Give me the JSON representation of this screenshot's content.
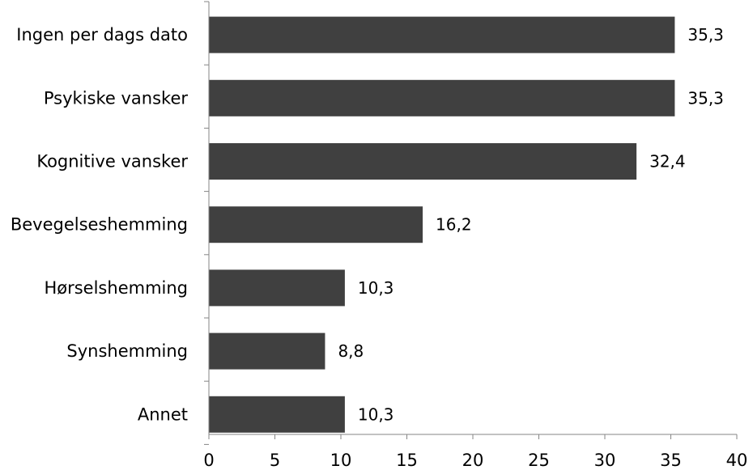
{
  "chart_data": {
    "type": "bar",
    "orientation": "horizontal",
    "categories": [
      "Ingen per dags dato",
      "Psykiske vansker",
      "Kognitive vansker",
      "Bevegelseshemming",
      "Hørselshemming",
      "Synshemming",
      "Annet"
    ],
    "values": [
      35.3,
      35.3,
      32.4,
      16.2,
      10.3,
      8.8,
      10.3
    ],
    "value_labels": [
      "35,3",
      "35,3",
      "32,4",
      "16,2",
      "10,3",
      "8,8",
      "10,3"
    ],
    "x_ticks": [
      0,
      5,
      10,
      15,
      20,
      25,
      30,
      35,
      40
    ],
    "xlim": [
      0,
      40
    ],
    "title": "",
    "xlabel": "",
    "ylabel": "",
    "grid": false,
    "legend": "none",
    "bar_color": "#404040",
    "axis_color": "#868686"
  }
}
